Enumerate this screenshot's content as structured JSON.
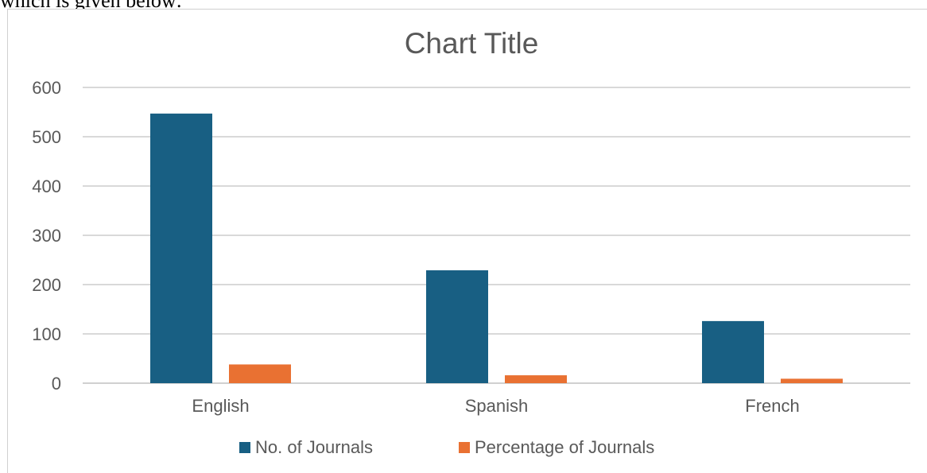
{
  "caption_fragment": "which is given below:",
  "chart_data": {
    "type": "bar",
    "title": "Chart Title",
    "categories": [
      "English",
      "Spanish",
      "French"
    ],
    "series": [
      {
        "name": "No. of Journals",
        "color": "#185F83",
        "values": [
          547,
          229,
          126
        ]
      },
      {
        "name": "Percentage of Journals",
        "color": "#E97132",
        "values": [
          38,
          16,
          9
        ]
      }
    ],
    "ylim": [
      0,
      600
    ],
    "yticks": [
      0,
      100,
      200,
      300,
      400,
      500,
      600
    ],
    "grid": true,
    "legend_position": "bottom",
    "colors": {
      "gridline": "#d9d9d9",
      "axis_text": "#595959",
      "title_text": "#595959"
    }
  }
}
